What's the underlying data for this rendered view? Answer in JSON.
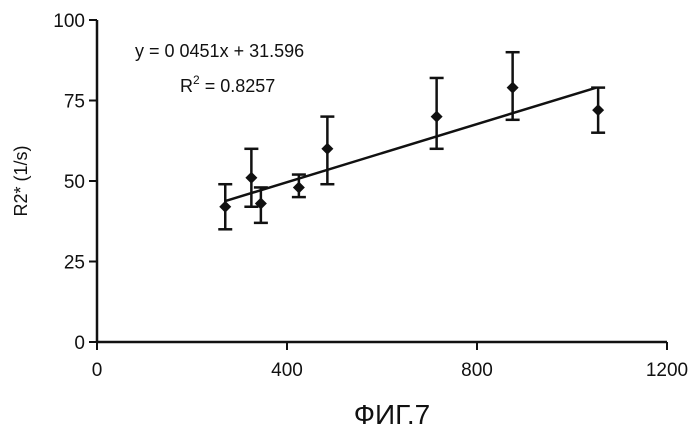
{
  "chart_data": {
    "type": "scatter",
    "title": "",
    "xlabel": "",
    "ylabel": "R2* (1/s)",
    "xlim": [
      0,
      1200
    ],
    "ylim": [
      0,
      100
    ],
    "xticks": [
      0,
      400,
      800,
      1200
    ],
    "yticks": [
      0,
      25,
      50,
      75,
      100
    ],
    "grid": false,
    "points": [
      {
        "x": 270,
        "y": 42,
        "err_low": 35,
        "err_high": 49
      },
      {
        "x": 325,
        "y": 51,
        "err_low": 42,
        "err_high": 60
      },
      {
        "x": 345,
        "y": 43,
        "err_low": 37,
        "err_high": 48
      },
      {
        "x": 425,
        "y": 48,
        "err_low": 45,
        "err_high": 52
      },
      {
        "x": 485,
        "y": 60,
        "err_low": 49,
        "err_high": 70
      },
      {
        "x": 715,
        "y": 70,
        "err_low": 60,
        "err_high": 82
      },
      {
        "x": 875,
        "y": 79,
        "err_low": 69,
        "err_high": 90
      },
      {
        "x": 1055,
        "y": 72,
        "err_low": 65,
        "err_high": 79
      }
    ],
    "trendline": {
      "slope": 0.0451,
      "intercept": 31.596,
      "x_start": 270,
      "x_end": 1050,
      "equation_text": "y = 0 0451x + 31.596",
      "r2_prefix": "R",
      "r2_sup": "2",
      "r2_value": " = 0.8257"
    },
    "caption": "ФИГ.7"
  }
}
